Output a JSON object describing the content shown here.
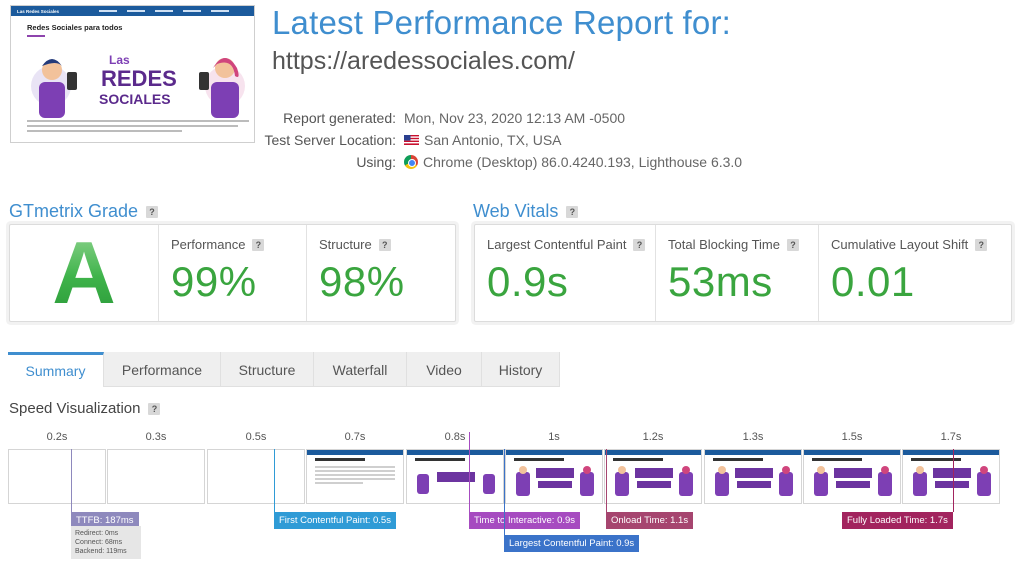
{
  "thumbnail": {
    "site_name": "Las Redes Sociales",
    "heading": "Redes Sociales para todos",
    "art_line1": "Las",
    "art_line2": "REDES",
    "art_line3": "SOCIALES"
  },
  "report": {
    "title": "Latest Performance Report for:",
    "url": "https://aredessociales.com/",
    "generated_label": "Report generated:",
    "generated_value": "Mon, Nov 23, 2020 12:13 AM -0500",
    "location_label": "Test Server Location:",
    "location_value": "San Antonio, TX, USA",
    "using_label": "Using:",
    "using_value": "Chrome (Desktop) 86.0.4240.193, Lighthouse 6.3.0"
  },
  "grade": {
    "heading": "GTmetrix Grade",
    "letter": "A",
    "performance_label": "Performance",
    "performance_value": "99%",
    "structure_label": "Structure",
    "structure_value": "98%"
  },
  "vitals": {
    "heading": "Web Vitals",
    "lcp_label": "Largest Contentful Paint",
    "lcp_value": "0.9s",
    "tbt_label": "Total Blocking Time",
    "tbt_value": "53ms",
    "cls_label": "Cumulative Layout Shift",
    "cls_value": "0.01"
  },
  "tabs": [
    "Summary",
    "Performance",
    "Structure",
    "Waterfall",
    "Video",
    "History"
  ],
  "speed": {
    "heading": "Speed Visualization",
    "frame_times": [
      "0.2s",
      "0.3s",
      "0.5s",
      "0.7s",
      "0.8s",
      "1s",
      "1.2s",
      "1.3s",
      "1.5s",
      "1.7s"
    ],
    "ttfb": "TTFB: 187ms",
    "ttfb_redirect": "Redirect: 0ms",
    "ttfb_connect": "Connect: 68ms",
    "ttfb_backend": "Backend: 119ms",
    "fcp": "First Contentful Paint: 0.5s",
    "tti": "Time to Interactive: 0.9s",
    "lcp": "Largest Contentful Paint: 0.9s",
    "onload": "Onload Time: 1.1s",
    "fully_loaded": "Fully Loaded Time: 1.7s"
  },
  "colors": {
    "accent": "#3f8ecf",
    "good": "#3aa53f",
    "ttfb": "#8e89bd",
    "fcp": "#2f9bd6",
    "tti": "#a64bc0",
    "lcp": "#3b73c9",
    "onload": "#a6456f",
    "fully_loaded": "#a2245e"
  }
}
